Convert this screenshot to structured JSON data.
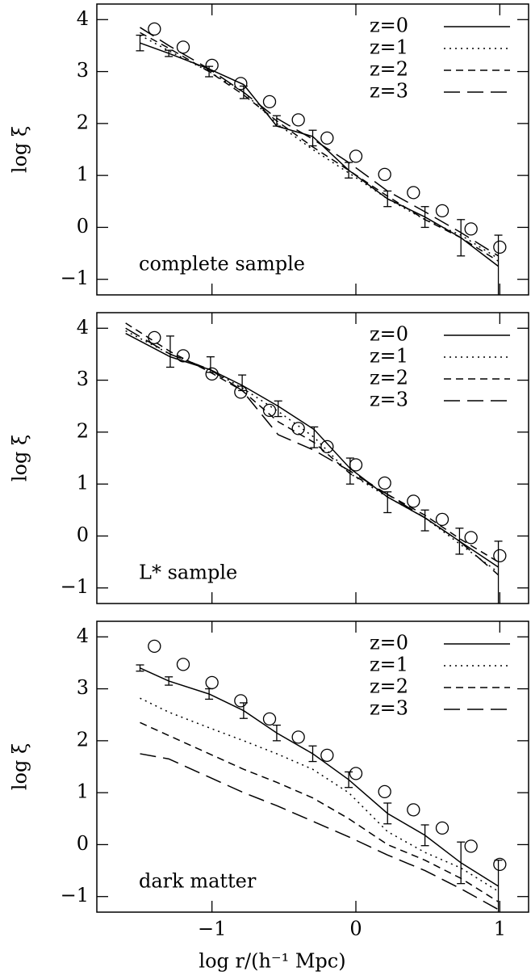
{
  "chart_data": [
    {
      "type": "line",
      "ylabel": "log ξ",
      "annotation": "complete sample",
      "show_xtick_labels": false,
      "xlim": [
        -1.8,
        1.2
      ],
      "ylim": [
        -1.3,
        4.3
      ],
      "xticks": [
        {
          "value": -1,
          "label": "−1"
        },
        0,
        1
      ],
      "yticks": [
        {
          "value": -1,
          "label": "−1"
        },
        0,
        1,
        2,
        3,
        4
      ],
      "x": [
        -1.5,
        -1.3,
        -1.02,
        -0.78,
        -0.55,
        -0.3,
        -0.05,
        0.22,
        0.48,
        0.73,
        0.99
      ],
      "series": [
        {
          "name": "z=0",
          "color": "#000000",
          "dash": "none",
          "values": [
            3.55,
            3.35,
            3.05,
            2.75,
            1.95,
            1.75,
            1.1,
            0.55,
            0.2,
            -0.2,
            -0.75
          ]
        },
        {
          "name": "z=1",
          "color": "#000000",
          "dash": "2,5",
          "values": [
            3.7,
            3.4,
            3.0,
            2.6,
            2.0,
            1.5,
            1.05,
            0.55,
            0.15,
            -0.15,
            -0.6
          ]
        },
        {
          "name": "z=2",
          "color": "#000000",
          "dash": "9,6",
          "values": [
            3.75,
            3.45,
            3.0,
            2.55,
            2.05,
            1.55,
            1.1,
            0.6,
            0.15,
            -0.2,
            -0.65
          ]
        },
        {
          "name": "z=3",
          "color": "#000000",
          "dash": "20,9",
          "values": [
            3.85,
            3.5,
            3.05,
            2.6,
            2.1,
            1.7,
            1.25,
            0.7,
            0.3,
            -0.1,
            -0.55
          ]
        }
      ],
      "points": {
        "x": [
          -1.4,
          -1.2,
          -1.0,
          -0.8,
          -0.6,
          -0.4,
          -0.2,
          0.0,
          0.2,
          0.4,
          0.6,
          0.8,
          1.0
        ],
        "y": [
          3.82,
          3.47,
          3.12,
          2.77,
          2.42,
          2.07,
          1.72,
          1.37,
          1.02,
          0.67,
          0.32,
          -0.03,
          -0.38
        ]
      },
      "errorbars": {
        "x": [
          -1.5,
          -1.3,
          -1.02,
          -0.78,
          -0.55,
          -0.3,
          -0.05,
          0.22,
          0.48,
          0.73,
          0.99
        ],
        "y": [
          3.55,
          3.35,
          3.0,
          2.6,
          2.05,
          1.72,
          1.1,
          0.55,
          0.2,
          -0.2,
          -0.75
        ],
        "err": [
          0.15,
          0.06,
          0.1,
          0.12,
          0.1,
          0.15,
          0.15,
          0.15,
          0.2,
          0.35,
          0.6
        ]
      }
    },
    {
      "type": "line",
      "ylabel": "log ξ",
      "annotation": "L* sample",
      "show_xtick_labels": false,
      "xlim": [
        -1.8,
        1.2
      ],
      "ylim": [
        -1.3,
        4.3
      ],
      "xticks": [
        {
          "value": -1,
          "label": "−1"
        },
        0,
        1
      ],
      "yticks": [
        {
          "value": -1,
          "label": "−1"
        },
        0,
        1,
        2,
        3,
        4
      ],
      "x": [
        -1.6,
        -1.29,
        -1.01,
        -0.79,
        -0.54,
        -0.29,
        -0.04,
        0.22,
        0.48,
        0.72,
        0.99
      ],
      "series": [
        {
          "name": "z=0",
          "color": "#000000",
          "dash": "none",
          "values": [
            3.9,
            3.45,
            3.2,
            2.9,
            2.5,
            2.05,
            1.3,
            0.75,
            0.35,
            -0.1,
            -0.6
          ]
        },
        {
          "name": "z=1",
          "color": "#000000",
          "dash": "2,5",
          "values": [
            3.95,
            3.5,
            3.2,
            2.85,
            2.4,
            1.9,
            1.2,
            0.75,
            0.35,
            -0.15,
            -0.7
          ]
        },
        {
          "name": "z=2",
          "color": "#000000",
          "dash": "9,6",
          "values": [
            4.1,
            3.55,
            3.15,
            2.8,
            2.2,
            1.8,
            1.2,
            0.8,
            0.4,
            -0.05,
            -0.5
          ]
        },
        {
          "name": "z=3",
          "color": "#000000",
          "dash": "20,9",
          "values": [
            4.0,
            3.5,
            3.2,
            2.8,
            1.95,
            1.65,
            1.25,
            0.8,
            0.35,
            -0.1,
            -0.75
          ]
        }
      ],
      "points": {
        "x": [
          -1.4,
          -1.2,
          -1.0,
          -0.8,
          -0.6,
          -0.4,
          -0.2,
          0.0,
          0.2,
          0.4,
          0.6,
          0.8,
          1.0
        ],
        "y": [
          3.82,
          3.47,
          3.12,
          2.77,
          2.42,
          2.07,
          1.72,
          1.37,
          1.02,
          0.67,
          0.32,
          -0.03,
          -0.38
        ]
      },
      "errorbars": {
        "x": [
          -1.29,
          -1.01,
          -0.79,
          -0.54,
          -0.29,
          -0.04,
          0.22,
          0.48,
          0.72,
          0.99
        ],
        "y": [
          3.55,
          3.3,
          2.95,
          2.45,
          1.9,
          1.25,
          0.65,
          0.3,
          -0.1,
          -0.7
        ],
        "err": [
          0.3,
          0.15,
          0.15,
          0.15,
          0.2,
          0.25,
          0.2,
          0.2,
          0.25,
          0.6
        ]
      }
    },
    {
      "type": "line",
      "ylabel": "log ξ",
      "annotation": "dark matter",
      "show_xtick_labels": true,
      "xlabel": "log r/(h⁻¹ Mpc)",
      "xlim": [
        -1.8,
        1.2
      ],
      "ylim": [
        -1.3,
        4.3
      ],
      "xticks": [
        {
          "value": -1,
          "label": "−1"
        },
        0,
        1
      ],
      "yticks": [
        {
          "value": -1,
          "label": "−1"
        },
        0,
        1,
        2,
        3,
        4
      ],
      "x": [
        -1.5,
        -1.3,
        -1.02,
        -0.78,
        -0.55,
        -0.3,
        -0.05,
        0.22,
        0.48,
        0.73,
        0.99
      ],
      "series": [
        {
          "name": "z=0",
          "color": "#000000",
          "dash": "none",
          "values": [
            3.4,
            3.15,
            2.9,
            2.58,
            2.15,
            1.75,
            1.25,
            0.6,
            0.18,
            -0.35,
            -0.8
          ]
        },
        {
          "name": "z=1",
          "color": "#000000",
          "dash": "2,5",
          "values": [
            2.82,
            2.55,
            2.25,
            2.0,
            1.75,
            1.45,
            1.0,
            0.25,
            -0.15,
            -0.45,
            -0.9
          ]
        },
        {
          "name": "z=2",
          "color": "#000000",
          "dash": "9,6",
          "values": [
            2.35,
            2.1,
            1.75,
            1.45,
            1.2,
            0.9,
            0.5,
            0.0,
            -0.3,
            -0.65,
            -1.1
          ]
        },
        {
          "name": "z=3",
          "color": "#000000",
          "dash": "20,9",
          "values": [
            1.75,
            1.65,
            1.3,
            1.0,
            0.75,
            0.45,
            0.15,
            -0.2,
            -0.5,
            -0.85,
            -1.25
          ]
        }
      ],
      "points": {
        "x": [
          -1.4,
          -1.2,
          -1.0,
          -0.8,
          -0.6,
          -0.4,
          -0.2,
          0.0,
          0.2,
          0.4,
          0.6,
          0.8,
          1.0
        ],
        "y": [
          3.82,
          3.47,
          3.12,
          2.77,
          2.42,
          2.07,
          1.72,
          1.37,
          1.02,
          0.67,
          0.32,
          -0.03,
          -0.38
        ]
      },
      "errorbars": {
        "x": [
          -1.5,
          -1.3,
          -1.02,
          -0.78,
          -0.55,
          -0.3,
          -0.05,
          0.22,
          0.48,
          0.73,
          0.99
        ],
        "y": [
          3.4,
          3.15,
          2.9,
          2.58,
          2.15,
          1.75,
          1.25,
          0.6,
          0.18,
          -0.35,
          -0.8
        ],
        "err": [
          0.06,
          0.08,
          0.1,
          0.15,
          0.15,
          0.15,
          0.15,
          0.2,
          0.2,
          0.4,
          0.5
        ]
      }
    }
  ]
}
